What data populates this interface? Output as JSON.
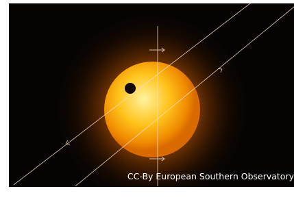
{
  "caption": "CC-By European Southern Observatory"
}
